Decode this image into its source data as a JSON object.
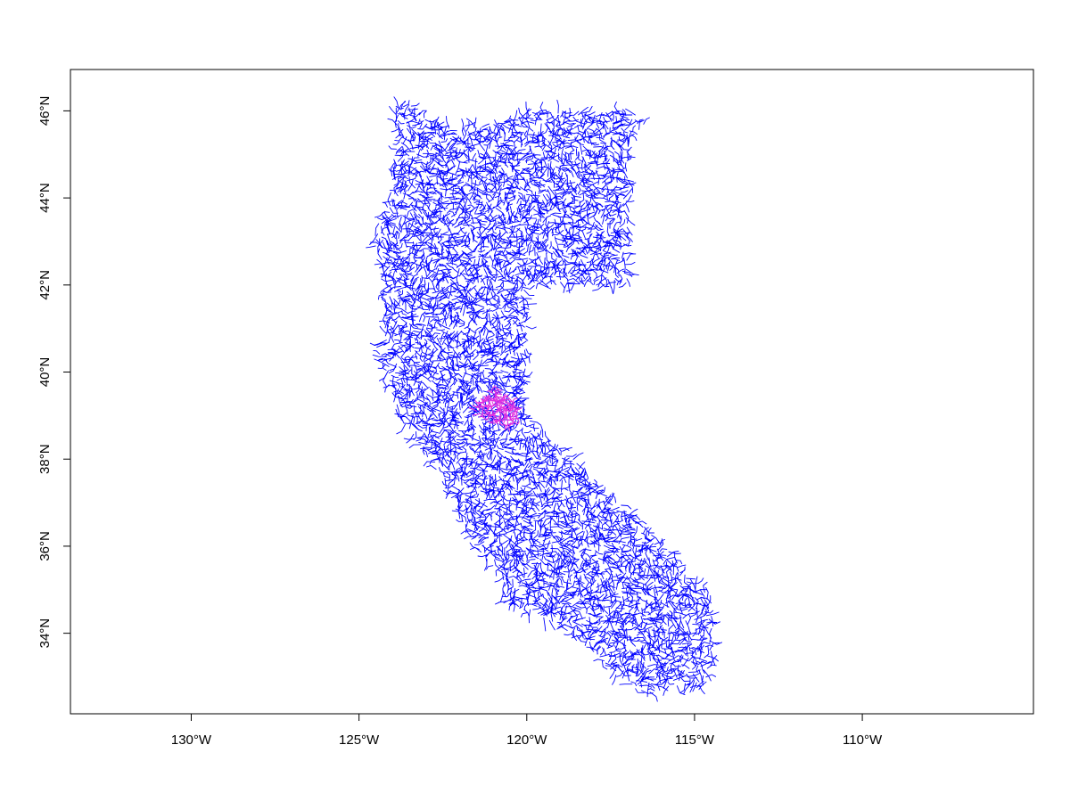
{
  "map": {
    "projection": "longitude-latitude",
    "lon_range": [
      -133.6,
      -104.9
    ],
    "lat_range": [
      32.15,
      46.95
    ],
    "x_ticks": [
      {
        "value": -130,
        "label": "130°W"
      },
      {
        "value": -125,
        "label": "125°W"
      },
      {
        "value": -120,
        "label": "120°W"
      },
      {
        "value": -115,
        "label": "115°W"
      },
      {
        "value": -110,
        "label": "110°W"
      }
    ],
    "y_ticks": [
      {
        "value": 34,
        "label": "34°N"
      },
      {
        "value": 36,
        "label": "36°N"
      },
      {
        "value": 38,
        "label": "38°N"
      },
      {
        "value": 40,
        "label": "40°N"
      },
      {
        "value": 42,
        "label": "42°N"
      },
      {
        "value": 44,
        "label": "44°N"
      },
      {
        "value": 46,
        "label": "46°N"
      }
    ],
    "layers": [
      {
        "name": "stream network",
        "color": "#0000ff",
        "region_outline_lonlat": [
          [
            -124.0,
            46.2
          ],
          [
            -123.3,
            46.15
          ],
          [
            -122.8,
            45.7
          ],
          [
            -121.2,
            45.65
          ],
          [
            -119.5,
            46.0
          ],
          [
            -116.8,
            46.0
          ],
          [
            -116.5,
            45.7
          ],
          [
            -116.9,
            45.3
          ],
          [
            -117.0,
            44.2
          ],
          [
            -117.0,
            42.0
          ],
          [
            -120.0,
            42.0
          ],
          [
            -120.0,
            39.0
          ],
          [
            -117.5,
            37.2
          ],
          [
            -115.5,
            35.7
          ],
          [
            -114.5,
            34.8
          ],
          [
            -114.4,
            33.8
          ],
          [
            -114.6,
            32.8
          ],
          [
            -116.6,
            32.6
          ],
          [
            -117.3,
            33.0
          ],
          [
            -118.3,
            33.8
          ],
          [
            -119.5,
            34.3
          ],
          [
            -120.6,
            34.6
          ],
          [
            -120.9,
            35.4
          ],
          [
            -121.9,
            36.4
          ],
          [
            -122.5,
            37.5
          ],
          [
            -123.0,
            38.0
          ],
          [
            -123.8,
            39.0
          ],
          [
            -124.4,
            40.4
          ],
          [
            -124.2,
            41.2
          ],
          [
            -124.4,
            42.5
          ],
          [
            -124.6,
            43.0
          ],
          [
            -124.1,
            44.0
          ],
          [
            -123.9,
            45.5
          ]
        ]
      },
      {
        "name": "highlighted watershed",
        "color": "#e030e0",
        "region_outline_lonlat": [
          [
            -120.95,
            39.65
          ],
          [
            -120.6,
            39.5
          ],
          [
            -120.25,
            39.2
          ],
          [
            -120.2,
            38.8
          ],
          [
            -120.7,
            38.75
          ],
          [
            -121.25,
            38.9
          ],
          [
            -121.5,
            39.1
          ],
          [
            -121.4,
            39.4
          ]
        ]
      }
    ]
  }
}
